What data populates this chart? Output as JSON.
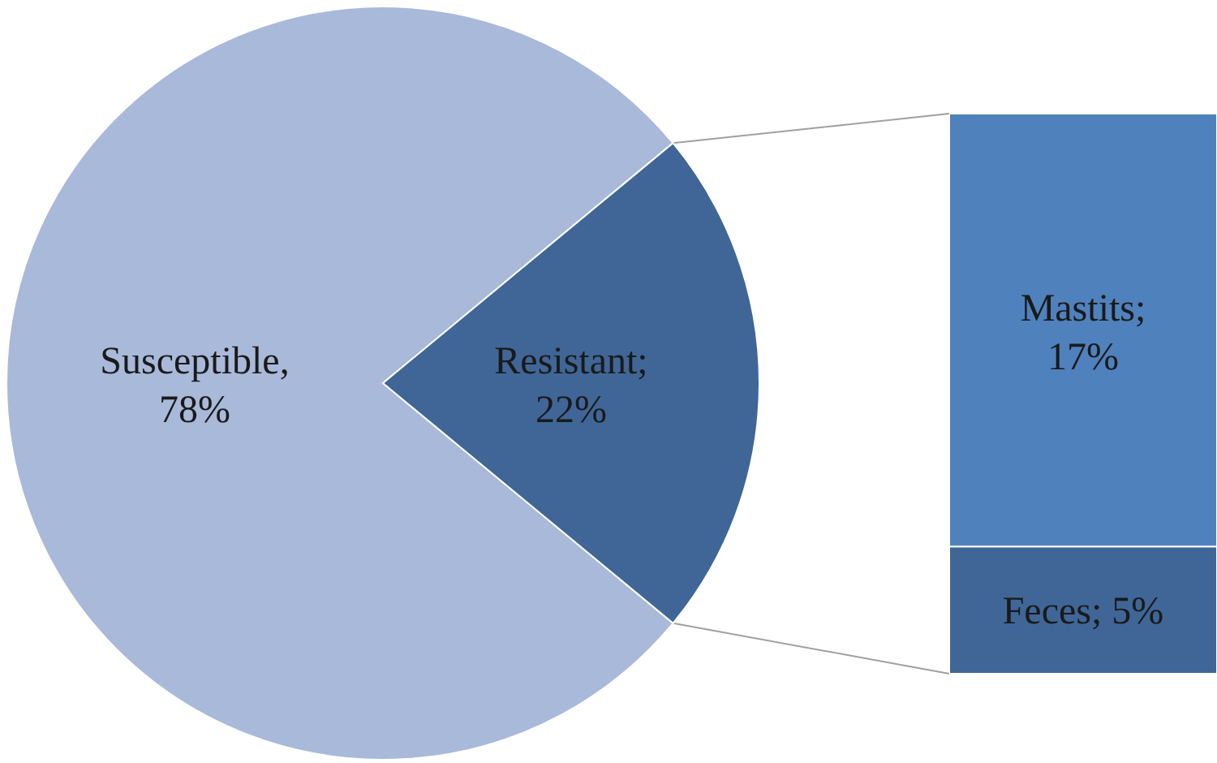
{
  "chart_data": [
    {
      "type": "pie",
      "categories": [
        "Susceptible",
        "Resistant"
      ],
      "values": [
        78,
        22
      ],
      "colors": [
        "#a9b9da",
        "#3f6697"
      ],
      "value_labels": [
        ", 78%",
        "; 22%"
      ]
    },
    {
      "type": "bar",
      "stacked": true,
      "categories": [
        null
      ],
      "series": [
        {
          "name": "Feces",
          "color": "#3f6697",
          "values": [
            5
          ],
          "value_labels": [
            "; 5%"
          ]
        },
        {
          "name": "Mastits",
          "color": "#4f81bd",
          "values": [
            17
          ],
          "value_labels": [
            "; 17%"
          ]
        }
      ]
    }
  ]
}
